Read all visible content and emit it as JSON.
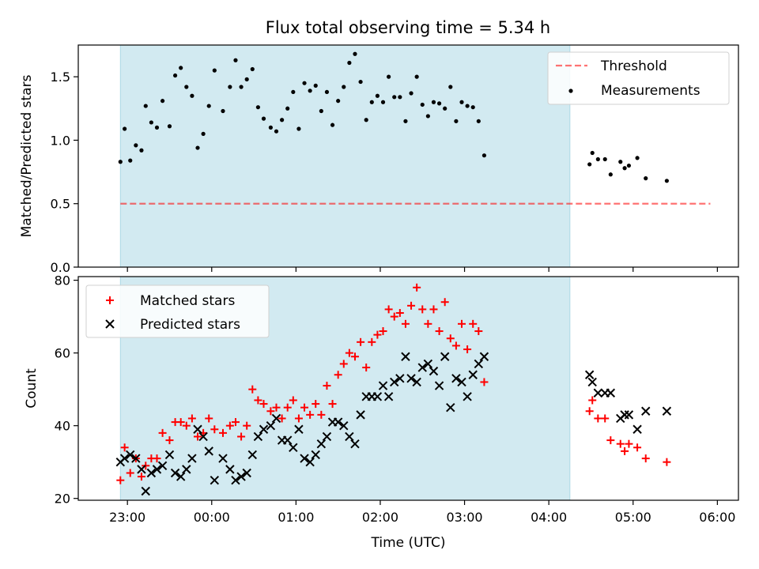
{
  "figure_title": "Flux total observing time = 5.34 h",
  "colors": {
    "shade": "#add8e6",
    "threshold": "#ff0000",
    "measurements": "#000000",
    "matched": "#ff0000",
    "predicted": "#000000"
  },
  "chart_data": [
    {
      "type": "scatter",
      "ylabel": "Matched/Predicted stars",
      "ylim": [
        0,
        1.75
      ],
      "yticks": [
        0.0,
        0.5,
        1.0,
        1.5
      ],
      "ytick_labels": [
        "0.0",
        "0.5",
        "1.0",
        "1.5"
      ],
      "shaded_span": [
        "22:55",
        "04:15"
      ],
      "legend_position": "upper right",
      "threshold": {
        "name": "Threshold",
        "y": 0.5,
        "x_range": [
          "22:55",
          "05:55"
        ],
        "style": "dashed"
      },
      "series": [
        {
          "name": "Measurements",
          "marker": "dot",
          "points": [
            [
              "22:55",
              0.83
            ],
            [
              "22:58",
              1.09
            ],
            [
              "23:02",
              0.84
            ],
            [
              "23:06",
              0.96
            ],
            [
              "23:10",
              0.92
            ],
            [
              "23:13",
              1.27
            ],
            [
              "23:17",
              1.14
            ],
            [
              "23:21",
              1.1
            ],
            [
              "23:25",
              1.31
            ],
            [
              "23:30",
              1.11
            ],
            [
              "23:34",
              1.51
            ],
            [
              "23:38",
              1.57
            ],
            [
              "23:42",
              1.42
            ],
            [
              "23:46",
              1.35
            ],
            [
              "23:50",
              0.94
            ],
            [
              "23:54",
              1.05
            ],
            [
              "23:58",
              1.27
            ],
            [
              "00:02",
              1.55
            ],
            [
              "00:08",
              1.23
            ],
            [
              "00:13",
              1.42
            ],
            [
              "00:17",
              1.63
            ],
            [
              "00:21",
              1.42
            ],
            [
              "00:25",
              1.48
            ],
            [
              "00:29",
              1.56
            ],
            [
              "00:33",
              1.26
            ],
            [
              "00:37",
              1.17
            ],
            [
              "00:42",
              1.1
            ],
            [
              "00:46",
              1.07
            ],
            [
              "00:50",
              1.16
            ],
            [
              "00:54",
              1.25
            ],
            [
              "00:58",
              1.38
            ],
            [
              "01:02",
              1.09
            ],
            [
              "01:06",
              1.45
            ],
            [
              "01:10",
              1.39
            ],
            [
              "01:14",
              1.43
            ],
            [
              "01:18",
              1.23
            ],
            [
              "01:22",
              1.38
            ],
            [
              "01:26",
              1.12
            ],
            [
              "01:30",
              1.31
            ],
            [
              "01:34",
              1.42
            ],
            [
              "01:38",
              1.61
            ],
            [
              "01:42",
              1.68
            ],
            [
              "01:46",
              1.46
            ],
            [
              "01:50",
              1.16
            ],
            [
              "01:54",
              1.3
            ],
            [
              "01:58",
              1.35
            ],
            [
              "02:02",
              1.3
            ],
            [
              "02:06",
              1.5
            ],
            [
              "02:10",
              1.34
            ],
            [
              "02:14",
              1.34
            ],
            [
              "02:18",
              1.15
            ],
            [
              "02:22",
              1.37
            ],
            [
              "02:26",
              1.5
            ],
            [
              "02:30",
              1.28
            ],
            [
              "02:34",
              1.19
            ],
            [
              "02:38",
              1.3
            ],
            [
              "02:42",
              1.29
            ],
            [
              "02:46",
              1.25
            ],
            [
              "02:50",
              1.42
            ],
            [
              "02:54",
              1.15
            ],
            [
              "02:58",
              1.3
            ],
            [
              "03:02",
              1.27
            ],
            [
              "03:06",
              1.26
            ],
            [
              "03:10",
              1.15
            ],
            [
              "03:14",
              0.88
            ],
            [
              "04:29",
              0.81
            ],
            [
              "04:31",
              0.9
            ],
            [
              "04:35",
              0.85
            ],
            [
              "04:40",
              0.85
            ],
            [
              "04:44",
              0.73
            ],
            [
              "04:51",
              0.83
            ],
            [
              "04:54",
              0.78
            ],
            [
              "04:57",
              0.8
            ],
            [
              "05:03",
              0.86
            ],
            [
              "05:09",
              0.7
            ],
            [
              "05:24",
              0.68
            ]
          ]
        }
      ]
    },
    {
      "type": "scatter",
      "xlabel": "Time (UTC)",
      "ylabel": "Count",
      "ylim": [
        19.5,
        81
      ],
      "yticks": [
        20,
        40,
        60,
        80
      ],
      "ytick_labels": [
        "20",
        "40",
        "60",
        "80"
      ],
      "xticks": [
        "23:00",
        "00:00",
        "01:00",
        "02:00",
        "03:00",
        "04:00",
        "05:00",
        "06:00"
      ],
      "shaded_span": [
        "22:55",
        "04:15"
      ],
      "legend_position": "upper left",
      "series": [
        {
          "name": "Matched stars",
          "marker": "plus",
          "points": [
            [
              "22:55",
              25
            ],
            [
              "22:58",
              34
            ],
            [
              "23:02",
              27
            ],
            [
              "23:06",
              31
            ],
            [
              "23:10",
              26
            ],
            [
              "23:13",
              29
            ],
            [
              "23:17",
              31
            ],
            [
              "23:21",
              31
            ],
            [
              "23:25",
              38
            ],
            [
              "23:30",
              36
            ],
            [
              "23:34",
              41
            ],
            [
              "23:38",
              41
            ],
            [
              "23:42",
              40
            ],
            [
              "23:46",
              42
            ],
            [
              "23:50",
              37
            ],
            [
              "23:54",
              38
            ],
            [
              "23:58",
              42
            ],
            [
              "00:02",
              39
            ],
            [
              "00:08",
              38
            ],
            [
              "00:13",
              40
            ],
            [
              "00:17",
              41
            ],
            [
              "00:21",
              37
            ],
            [
              "00:25",
              40
            ],
            [
              "00:29",
              50
            ],
            [
              "00:33",
              47
            ],
            [
              "00:37",
              46
            ],
            [
              "00:42",
              44
            ],
            [
              "00:46",
              45
            ],
            [
              "00:50",
              42
            ],
            [
              "00:54",
              45
            ],
            [
              "00:58",
              47
            ],
            [
              "01:02",
              42
            ],
            [
              "01:06",
              45
            ],
            [
              "01:10",
              43
            ],
            [
              "01:14",
              46
            ],
            [
              "01:18",
              43
            ],
            [
              "01:22",
              51
            ],
            [
              "01:26",
              46
            ],
            [
              "01:30",
              54
            ],
            [
              "01:34",
              57
            ],
            [
              "01:38",
              60
            ],
            [
              "01:42",
              59
            ],
            [
              "01:46",
              63
            ],
            [
              "01:50",
              56
            ],
            [
              "01:54",
              63
            ],
            [
              "01:58",
              65
            ],
            [
              "02:02",
              66
            ],
            [
              "02:06",
              72
            ],
            [
              "02:10",
              70
            ],
            [
              "02:14",
              71
            ],
            [
              "02:18",
              68
            ],
            [
              "02:22",
              73
            ],
            [
              "02:26",
              78
            ],
            [
              "02:30",
              72
            ],
            [
              "02:34",
              68
            ],
            [
              "02:38",
              72
            ],
            [
              "02:42",
              66
            ],
            [
              "02:46",
              74
            ],
            [
              "02:50",
              64
            ],
            [
              "02:54",
              62
            ],
            [
              "02:58",
              68
            ],
            [
              "03:02",
              61
            ],
            [
              "03:06",
              68
            ],
            [
              "03:10",
              66
            ],
            [
              "03:14",
              52
            ],
            [
              "04:29",
              44
            ],
            [
              "04:31",
              47
            ],
            [
              "04:35",
              42
            ],
            [
              "04:40",
              42
            ],
            [
              "04:44",
              36
            ],
            [
              "04:51",
              35
            ],
            [
              "04:54",
              33
            ],
            [
              "04:57",
              35
            ],
            [
              "05:03",
              34
            ],
            [
              "05:09",
              31
            ],
            [
              "05:24",
              30
            ]
          ]
        },
        {
          "name": "Predicted stars",
          "marker": "x",
          "points": [
            [
              "22:55",
              30
            ],
            [
              "22:58",
              31
            ],
            [
              "23:02",
              32
            ],
            [
              "23:06",
              31
            ],
            [
              "23:10",
              28
            ],
            [
              "23:13",
              22
            ],
            [
              "23:17",
              27
            ],
            [
              "23:21",
              28
            ],
            [
              "23:25",
              29
            ],
            [
              "23:30",
              32
            ],
            [
              "23:34",
              27
            ],
            [
              "23:38",
              26
            ],
            [
              "23:42",
              28
            ],
            [
              "23:46",
              31
            ],
            [
              "23:50",
              39
            ],
            [
              "23:54",
              37
            ],
            [
              "23:58",
              33
            ],
            [
              "00:02",
              25
            ],
            [
              "00:08",
              31
            ],
            [
              "00:13",
              28
            ],
            [
              "00:17",
              25
            ],
            [
              "00:21",
              26
            ],
            [
              "00:25",
              27
            ],
            [
              "00:29",
              32
            ],
            [
              "00:33",
              37
            ],
            [
              "00:37",
              39
            ],
            [
              "00:42",
              40
            ],
            [
              "00:46",
              42
            ],
            [
              "00:50",
              36
            ],
            [
              "00:54",
              36
            ],
            [
              "00:58",
              34
            ],
            [
              "01:02",
              39
            ],
            [
              "01:06",
              31
            ],
            [
              "01:10",
              30
            ],
            [
              "01:14",
              32
            ],
            [
              "01:18",
              35
            ],
            [
              "01:22",
              37
            ],
            [
              "01:26",
              41
            ],
            [
              "01:30",
              41
            ],
            [
              "01:34",
              40
            ],
            [
              "01:38",
              37
            ],
            [
              "01:42",
              35
            ],
            [
              "01:46",
              43
            ],
            [
              "01:50",
              48
            ],
            [
              "01:54",
              48
            ],
            [
              "01:58",
              48
            ],
            [
              "02:02",
              51
            ],
            [
              "02:06",
              48
            ],
            [
              "02:10",
              52
            ],
            [
              "02:14",
              53
            ],
            [
              "02:18",
              59
            ],
            [
              "02:22",
              53
            ],
            [
              "02:26",
              52
            ],
            [
              "02:30",
              56
            ],
            [
              "02:34",
              57
            ],
            [
              "02:38",
              55
            ],
            [
              "02:42",
              51
            ],
            [
              "02:46",
              59
            ],
            [
              "02:50",
              45
            ],
            [
              "02:54",
              53
            ],
            [
              "02:58",
              52
            ],
            [
              "03:02",
              48
            ],
            [
              "03:06",
              54
            ],
            [
              "03:10",
              57
            ],
            [
              "03:14",
              59
            ],
            [
              "04:29",
              54
            ],
            [
              "04:31",
              52
            ],
            [
              "04:35",
              49
            ],
            [
              "04:40",
              49
            ],
            [
              "04:44",
              49
            ],
            [
              "04:51",
              42
            ],
            [
              "04:54",
              43
            ],
            [
              "04:57",
              43
            ],
            [
              "05:03",
              39
            ],
            [
              "05:09",
              44
            ],
            [
              "05:24",
              44
            ]
          ]
        }
      ]
    }
  ]
}
